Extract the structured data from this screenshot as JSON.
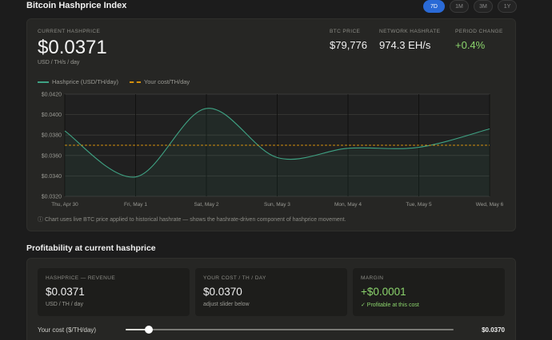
{
  "header": {
    "title": "Bitcoin Hashprice Index",
    "ranges": [
      {
        "label": "7D",
        "active": true
      },
      {
        "label": "1M",
        "active": false
      },
      {
        "label": "3M",
        "active": false
      },
      {
        "label": "1Y",
        "active": false
      }
    ]
  },
  "stats": {
    "current_label": "CURRENT HASHPRICE",
    "current_value": "$0.0371",
    "current_unit": "USD / TH/s / day",
    "btc_label": "BTC PRICE",
    "btc_value": "$79,776",
    "hashrate_label": "NETWORK HASHRATE",
    "hashrate_value": "974.3 EH/s",
    "change_label": "PERIOD CHANGE",
    "change_value": "+0.4%"
  },
  "legend": {
    "hashprice": "Hashprice (USD/TH/day)",
    "cost": "Your cost/TH/day"
  },
  "colors": {
    "line": "#3fa384",
    "cost_line": "#d4900c",
    "positive": "#8bd46c",
    "accent": "#2a6ad6"
  },
  "chart_data": {
    "type": "line",
    "x": [
      "Thu, Apr 30",
      "Fri, May 1",
      "Sat, May 2",
      "Sun, May 3",
      "Mon, May 4",
      "Tue, May 5",
      "Wed, May 6"
    ],
    "series": [
      {
        "name": "Hashprice (USD/TH/day)",
        "values": [
          0.0384,
          0.0339,
          0.0406,
          0.0358,
          0.0367,
          0.0368,
          0.0386
        ]
      },
      {
        "name": "Your cost/TH/day",
        "values": [
          0.037,
          0.037,
          0.037,
          0.037,
          0.037,
          0.037,
          0.037
        ]
      }
    ],
    "yticks": [
      "$0.0420",
      "$0.0400",
      "$0.0380",
      "$0.0360",
      "$0.0340",
      "$0.0320"
    ],
    "ylim": [
      0.032,
      0.042
    ],
    "grid": true
  },
  "chart_note": "ⓘ Chart uses live BTC price applied to historical hashrate — shows the hashrate-driven component of hashprice movement.",
  "profitability": {
    "title": "Profitability at current hashprice",
    "tiles": [
      {
        "label": "HASHPRICE — REVENUE",
        "value": "$0.0371",
        "sub": "USD / TH / day"
      },
      {
        "label": "YOUR COST / TH / DAY",
        "value": "$0.0370",
        "sub": "adjust slider below"
      },
      {
        "label": "MARGIN",
        "value": "+$0.0001",
        "sub": "✓ Profitable at this cost"
      }
    ],
    "cost_label": "Your cost ($/TH/day)",
    "cost_value": "$0.0370",
    "slider_fraction": 0.07
  }
}
